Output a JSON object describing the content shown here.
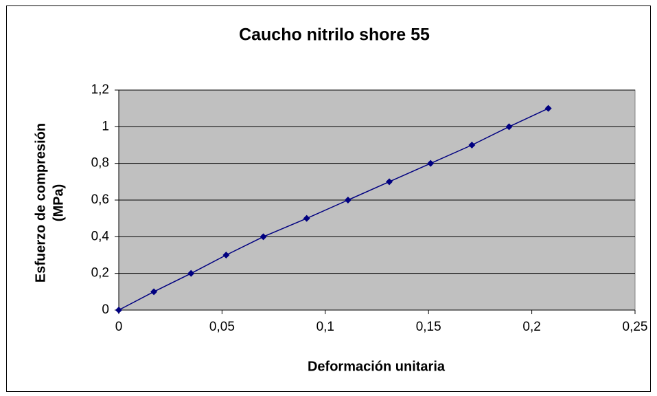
{
  "chart_data": {
    "type": "scatter",
    "title": "Caucho nitrilo shore 55",
    "xlabel": "Deformación unitaria",
    "ylabel": [
      "Esfuerzo de compresión",
      "(MPa)"
    ],
    "x": [
      0,
      0.017,
      0.035,
      0.052,
      0.07,
      0.091,
      0.111,
      0.131,
      0.151,
      0.171,
      0.189,
      0.208
    ],
    "series": [
      {
        "color": "#000080",
        "values": [
          0,
          0.1,
          0.2,
          0.3,
          0.4,
          0.5,
          0.6,
          0.7,
          0.8,
          0.9,
          1,
          1.1
        ]
      }
    ],
    "xlim": [
      0,
      0.25
    ],
    "xticks": [
      0,
      {
        "value": 0.05,
        "label": "0,05"
      },
      {
        "value": 0.1,
        "label": "0,1"
      },
      {
        "value": 0.15,
        "label": "0,15"
      },
      {
        "value": 0.2,
        "label": "0,2"
      },
      {
        "value": 0.25,
        "label": "0,25"
      }
    ],
    "ylim": [
      0,
      1.2
    ],
    "yticks": [
      0,
      {
        "value": 0.2,
        "label": "0,2"
      },
      {
        "value": 0.4,
        "label": "0,4"
      },
      {
        "value": 0.6,
        "label": "0,6"
      },
      {
        "value": 0.8,
        "label": "0,8"
      },
      1,
      {
        "value": 1.2,
        "label": "1,2"
      }
    ],
    "grid": true,
    "plot_background": "#c0c0c0"
  }
}
